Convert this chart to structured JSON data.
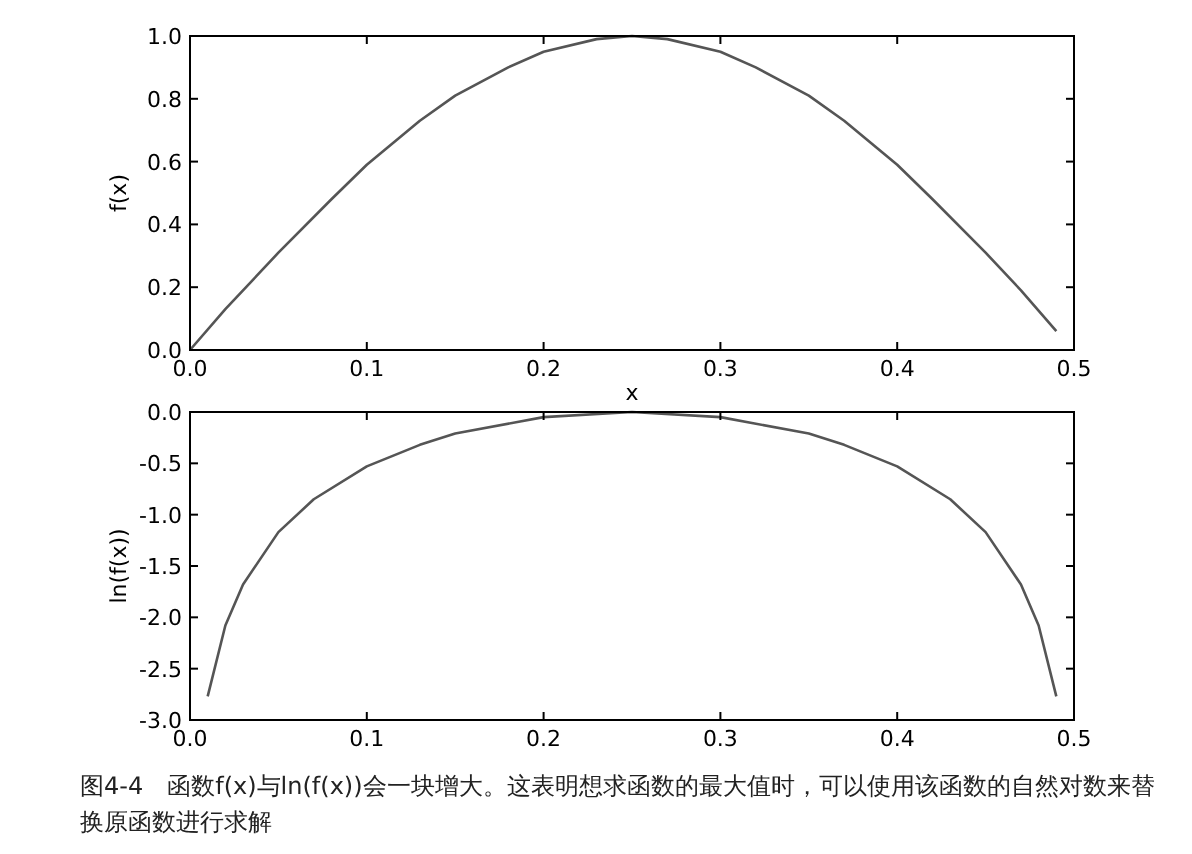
{
  "chart_data": [
    {
      "type": "line",
      "xlabel": "x",
      "ylabel": "f(x)",
      "xlim": [
        0,
        0.5
      ],
      "xticks": [
        {
          "value": 0,
          "label": "0.0"
        },
        0.1,
        0.2,
        0.3,
        0.4,
        0.5
      ],
      "ylim": [
        0,
        1
      ],
      "yticks": [
        {
          "value": 0,
          "label": "0.0"
        },
        0.2,
        0.4,
        0.6,
        0.8,
        {
          "value": 1,
          "label": "1.0"
        }
      ],
      "grid": false,
      "series": [
        {
          "color": "#555555",
          "x": [
            0,
            0.02,
            0.05,
            0.08,
            0.1,
            0.13,
            0.15,
            0.18,
            0.2,
            0.23,
            0.25,
            0.27,
            0.3,
            0.32,
            0.35,
            0.37,
            0.4,
            0.42,
            0.45,
            0.47,
            0.49
          ],
          "values": [
            0,
            0.13,
            0.31,
            0.48,
            0.59,
            0.73,
            0.81,
            0.9,
            0.95,
            0.99,
            1,
            0.99,
            0.95,
            0.9,
            0.81,
            0.73,
            0.59,
            0.48,
            0.31,
            0.19,
            0.06
          ]
        }
      ]
    },
    {
      "type": "line",
      "ylabel": "ln(f(x))",
      "xlim": [
        0,
        0.5
      ],
      "xticks": [
        {
          "value": 0,
          "label": "0.0"
        },
        0.1,
        0.2,
        0.3,
        0.4,
        0.5
      ],
      "ylim": [
        -3,
        0
      ],
      "yticks": [
        {
          "value": -3,
          "label": "-3.0"
        },
        -2.5,
        {
          "value": -2,
          "label": "-2.0"
        },
        -1.5,
        {
          "value": -1,
          "label": "-1.0"
        },
        -0.5,
        {
          "value": 0,
          "label": "0.0"
        }
      ],
      "grid": false,
      "series": [
        {
          "color": "#555555",
          "x": [
            0.01,
            0.02,
            0.03,
            0.05,
            0.07,
            0.1,
            0.13,
            0.15,
            0.2,
            0.25,
            0.3,
            0.35,
            0.37,
            0.4,
            0.43,
            0.45,
            0.47,
            0.48,
            0.49
          ],
          "values": [
            -2.77,
            -2.08,
            -1.68,
            -1.17,
            -0.85,
            -0.53,
            -0.32,
            -0.21,
            -0.05,
            0,
            -0.05,
            -0.21,
            -0.32,
            -0.53,
            -0.85,
            -1.17,
            -1.68,
            -2.08,
            -2.77
          ]
        }
      ],
      "annotations": [
        "图4-4　函数f(x)与ln(f(x))会一块增大。这表明想求函数的最大值时，可以使用该函数的自然对数来替换原函数进行求解"
      ]
    }
  ]
}
